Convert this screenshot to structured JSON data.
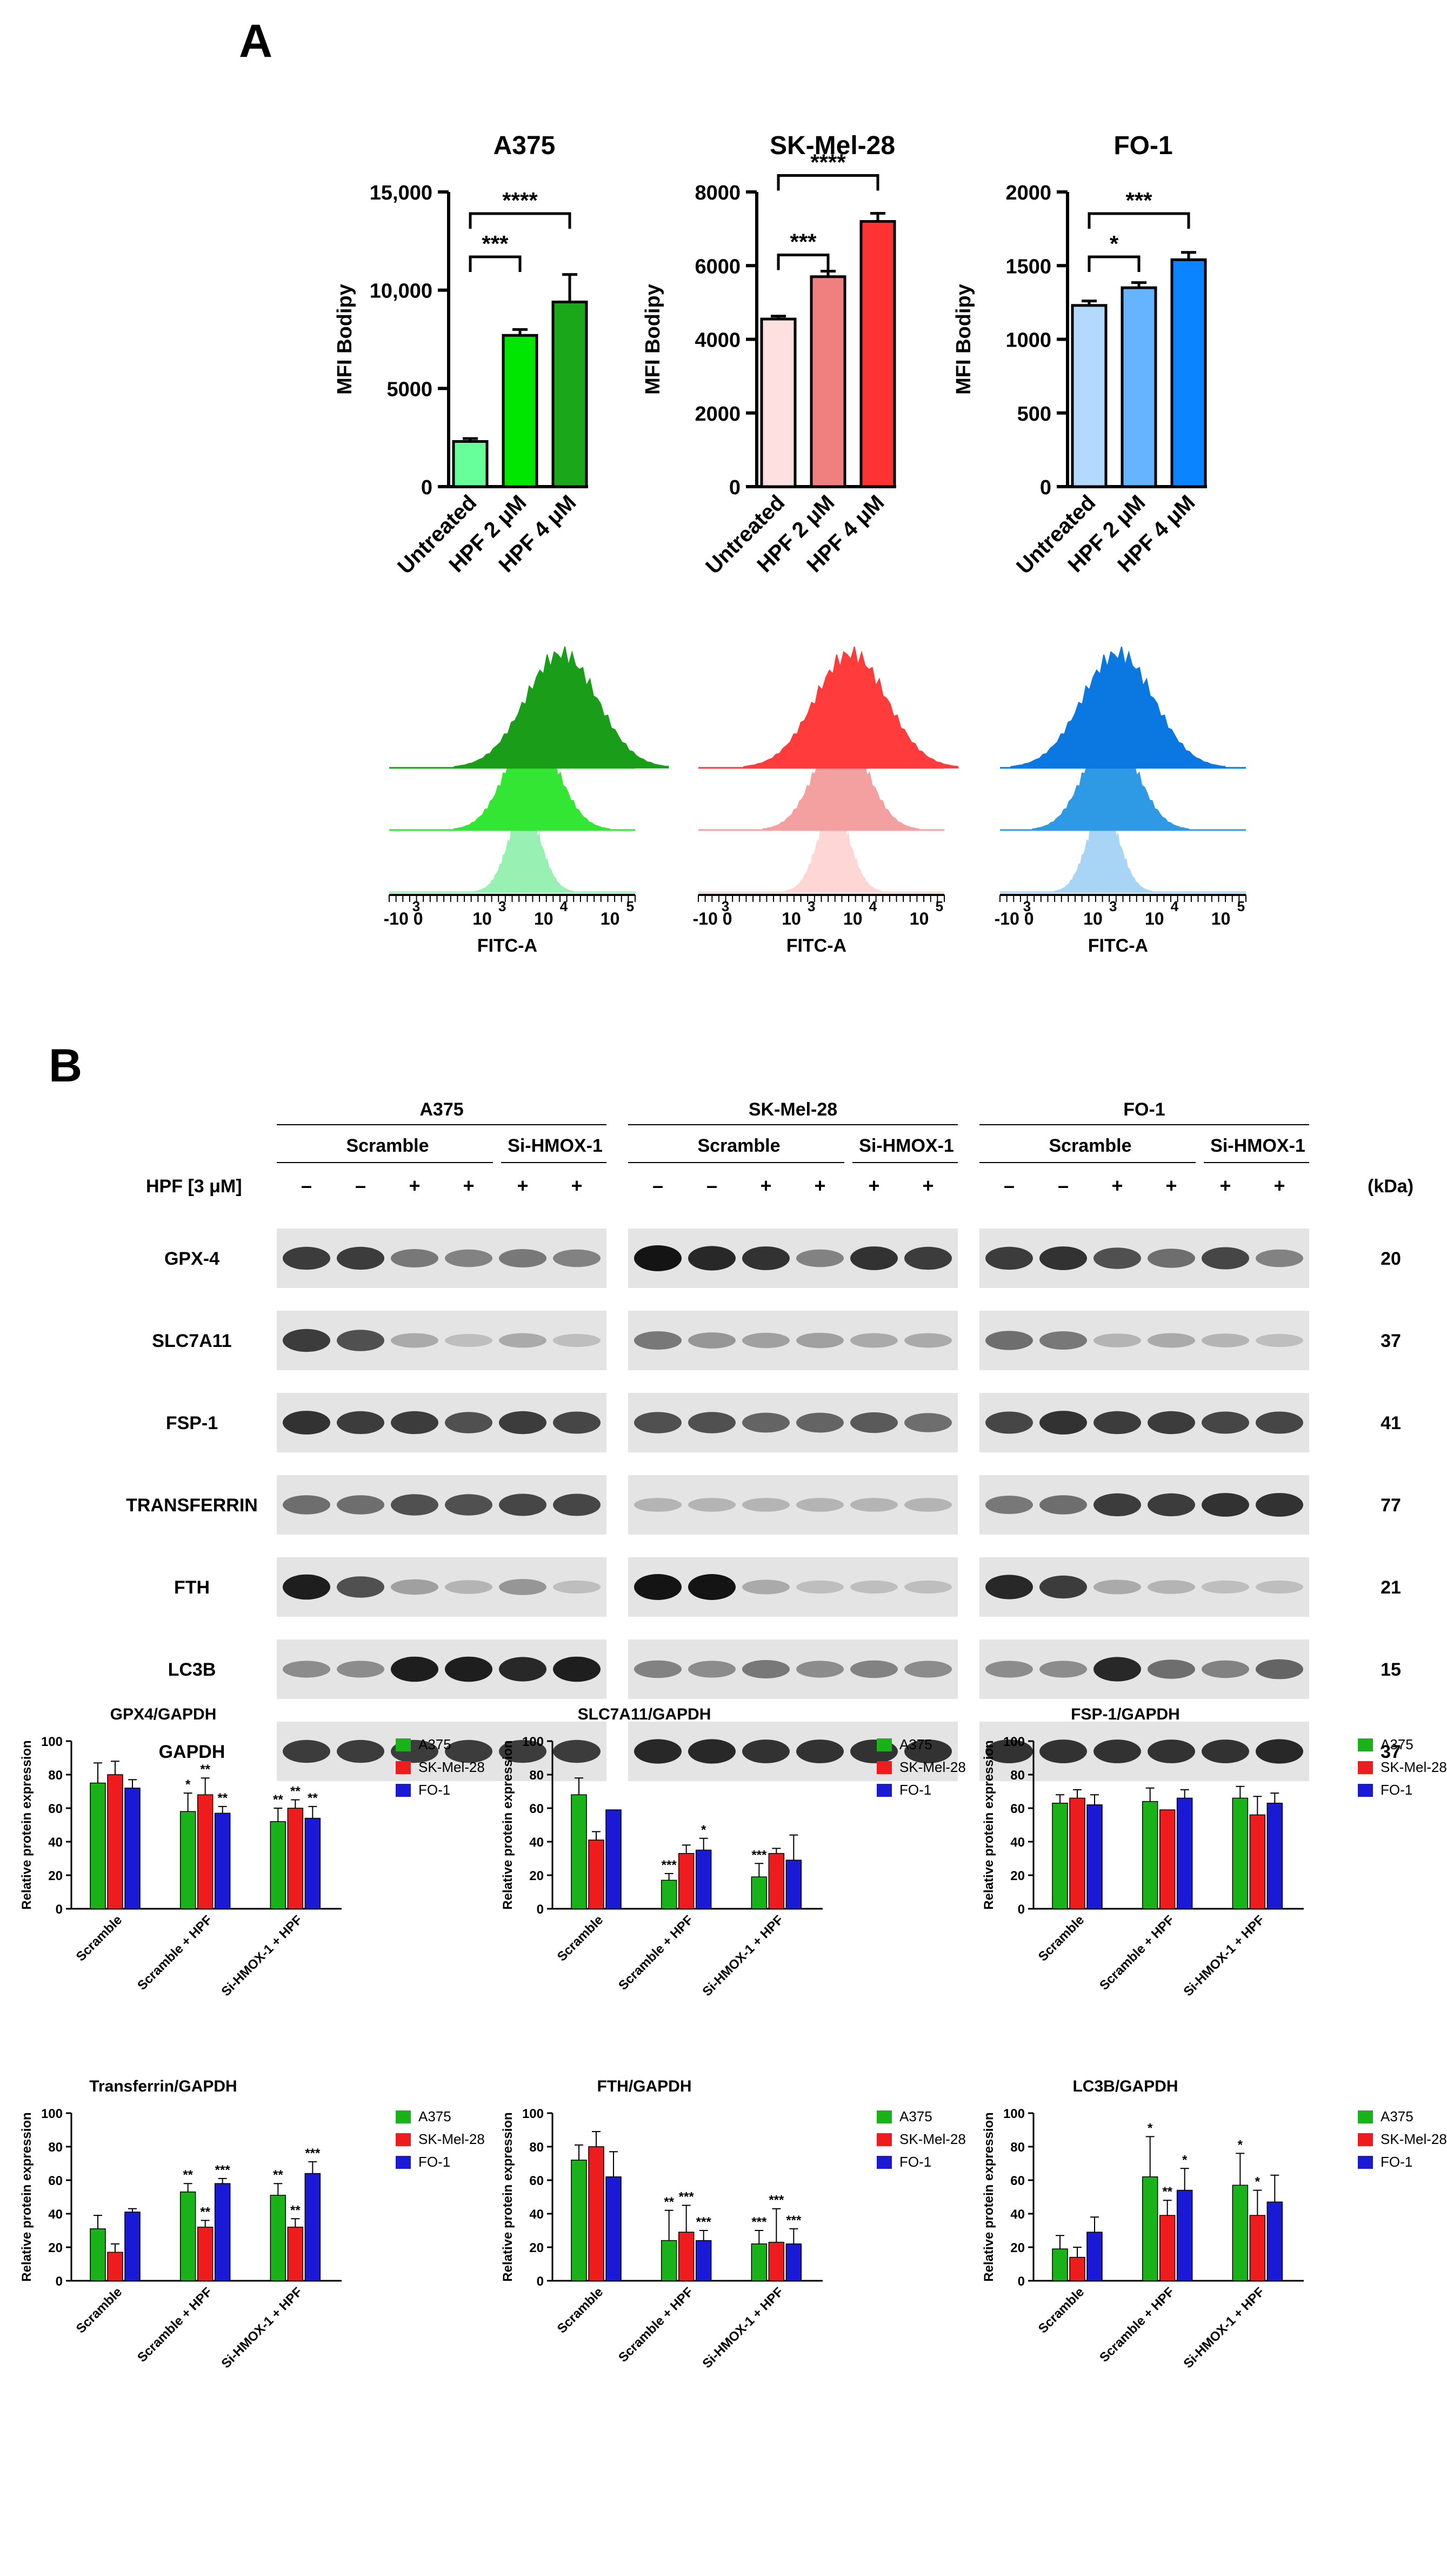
{
  "panel_a": {
    "label": "A",
    "bar_charts": [
      {
        "title": "A375",
        "ylabel": "MFI Bodipy",
        "yticks": [
          "0",
          "5000",
          "10,000",
          "15,000"
        ],
        "ymax": 15000,
        "categories": [
          "Untreated",
          "HPF 2 μM",
          "HPF 4 μM"
        ],
        "values": [
          2300,
          7700,
          9400
        ],
        "errors": [
          150,
          300,
          1400
        ],
        "colors": [
          "#66ff99",
          "#00e600",
          "#1aa81a"
        ],
        "brackets": [
          {
            "from": 0,
            "to": 1,
            "label": "***"
          },
          {
            "from": 0,
            "to": 2,
            "label": "****"
          }
        ]
      },
      {
        "title": "SK-Mel-28",
        "ylabel": "MFI Bodipy",
        "yticks": [
          "0",
          "2000",
          "4000",
          "6000",
          "8000"
        ],
        "ymax": 8000,
        "categories": [
          "Untreated",
          "HPF 2 μM",
          "HPF 4 μM"
        ],
        "values": [
          4550,
          5700,
          7200
        ],
        "errors": [
          80,
          150,
          220
        ],
        "colors": [
          "#ffe0e0",
          "#f08080",
          "#ff3333"
        ],
        "brackets": [
          {
            "from": 0,
            "to": 1,
            "label": "***"
          },
          {
            "from": 0,
            "to": 2,
            "label": "****"
          }
        ]
      },
      {
        "title": "FO-1",
        "ylabel": "MFI Bodipy",
        "yticks": [
          "0",
          "500",
          "1000",
          "1500",
          "2000"
        ],
        "ymax": 2000,
        "categories": [
          "Untreated",
          "HPF 2 μM",
          "HPF 4 μM"
        ],
        "values": [
          1230,
          1350,
          1540
        ],
        "errors": [
          30,
          35,
          50
        ],
        "colors": [
          "#b3d9ff",
          "#66b3ff",
          "#0a84ff"
        ],
        "brackets": [
          {
            "from": 0,
            "to": 1,
            "label": "*"
          },
          {
            "from": 0,
            "to": 2,
            "label": "***"
          }
        ]
      }
    ],
    "histograms": [
      {
        "xlabel": "FITC-A",
        "ticks": [
          "-10",
          "0",
          "10",
          "10",
          "10"
        ],
        "exps": [
          "3",
          "",
          "3",
          "4",
          "5"
        ],
        "colors": [
          "#99f0b3",
          "#33e633",
          "#1a9e1a"
        ],
        "peaks": [
          0.55,
          0.58,
          0.7
        ]
      },
      {
        "xlabel": "FITC-A",
        "ticks": [
          "-10",
          "0",
          "10",
          "10",
          "10"
        ],
        "exps": [
          "3",
          "",
          "3",
          "4",
          "5"
        ],
        "colors": [
          "#ffd6d6",
          "#f4a0a0",
          "#ff3b3b"
        ],
        "peaks": [
          0.55,
          0.58,
          0.62
        ]
      },
      {
        "xlabel": "FITC-A",
        "ticks": [
          "-10",
          "0",
          "10",
          "10",
          "10"
        ],
        "exps": [
          "3",
          "",
          "3",
          "4",
          "5"
        ],
        "colors": [
          "#a8d4f5",
          "#2e9ae6",
          "#0a78e0"
        ],
        "peaks": [
          0.42,
          0.45,
          0.48
        ]
      }
    ]
  },
  "panel_b": {
    "label": "B",
    "cell_lines": [
      "A375",
      "SK-Mel-28",
      "FO-1"
    ],
    "groups": [
      "Scramble",
      "Si-HMOX-1"
    ],
    "hpf_label": "HPF [3 μM]",
    "hpf_signs": [
      "–",
      "–",
      "+",
      "+",
      "+",
      "+"
    ],
    "kda_label": "(kDa)",
    "proteins": [
      {
        "name": "GPX-4",
        "kda": "20"
      },
      {
        "name": "SLC7A11",
        "kda": "37"
      },
      {
        "name": "FSP-1",
        "kda": "41"
      },
      {
        "name": "TRANSFERRIN",
        "kda": "77"
      },
      {
        "name": "FTH",
        "kda": "21"
      },
      {
        "name": "LC3B",
        "kda": "15"
      },
      {
        "name": "GAPDH",
        "kda": "37"
      }
    ]
  },
  "chart_data": [
    {
      "type": "bar",
      "title": "GPX4/GAPDH",
      "ylabel": "Relative protein expression",
      "ylim": [
        0,
        100
      ],
      "yticks": [
        "0",
        "20",
        "40",
        "60",
        "80",
        "100"
      ],
      "categories": [
        "Scramble",
        "Scramble + HPF",
        "Si-HMOX-1 + HPF"
      ],
      "series": [
        {
          "name": "A375",
          "values": [
            75,
            58,
            52
          ],
          "errors": [
            12,
            11,
            8
          ],
          "sig": [
            "",
            "*",
            "**"
          ]
        },
        {
          "name": "SK-Mel-28",
          "values": [
            80,
            68,
            60
          ],
          "errors": [
            8,
            10,
            5
          ],
          "sig": [
            "",
            "**",
            "**"
          ]
        },
        {
          "name": "FO-1",
          "values": [
            72,
            57,
            54
          ],
          "errors": [
            5,
            4,
            7
          ],
          "sig": [
            "",
            "**",
            "**"
          ]
        }
      ]
    },
    {
      "type": "bar",
      "title": "SLC7A11/GAPDH",
      "ylabel": "Relative protein expression",
      "ylim": [
        0,
        100
      ],
      "yticks": [
        "0",
        "20",
        "40",
        "60",
        "80",
        "100"
      ],
      "categories": [
        "Scramble",
        "Scramble + HPF",
        "Si-HMOX-1 + HPF"
      ],
      "series": [
        {
          "name": "A375",
          "values": [
            68,
            17,
            19
          ],
          "errors": [
            10,
            4,
            8
          ],
          "sig": [
            "",
            "***",
            "***"
          ]
        },
        {
          "name": "SK-Mel-28",
          "values": [
            41,
            33,
            33
          ],
          "errors": [
            5,
            5,
            3
          ],
          "sig": [
            "",
            "",
            ""
          ]
        },
        {
          "name": "FO-1",
          "values": [
            59,
            35,
            29
          ],
          "errors": [
            0,
            7,
            15
          ],
          "sig": [
            "",
            "*",
            ""
          ]
        }
      ]
    },
    {
      "type": "bar",
      "title": "FSP-1/GAPDH",
      "ylabel": "Relative protein expression",
      "ylim": [
        0,
        100
      ],
      "yticks": [
        "0",
        "20",
        "40",
        "60",
        "80",
        "100"
      ],
      "categories": [
        "Scramble",
        "Scramble + HPF",
        "Si-HMOX-1 + HPF"
      ],
      "series": [
        {
          "name": "A375",
          "values": [
            63,
            64,
            66
          ],
          "errors": [
            5,
            8,
            7
          ],
          "sig": [
            "",
            "",
            ""
          ]
        },
        {
          "name": "SK-Mel-28",
          "values": [
            66,
            59,
            56
          ],
          "errors": [
            5,
            0,
            11
          ],
          "sig": [
            "",
            "",
            ""
          ]
        },
        {
          "name": "FO-1",
          "values": [
            62,
            66,
            63
          ],
          "errors": [
            6,
            5,
            6
          ],
          "sig": [
            "",
            "",
            ""
          ]
        }
      ]
    },
    {
      "type": "bar",
      "title": "Transferrin/GAPDH",
      "ylabel": "Relative protein expression",
      "ylim": [
        0,
        100
      ],
      "yticks": [
        "0",
        "20",
        "40",
        "60",
        "80",
        "100"
      ],
      "categories": [
        "Scramble",
        "Scramble + HPF",
        "Si-HMOX-1 + HPF"
      ],
      "series": [
        {
          "name": "A375",
          "values": [
            31,
            53,
            51
          ],
          "errors": [
            8,
            5,
            7
          ],
          "sig": [
            "",
            "**",
            "**"
          ]
        },
        {
          "name": "SK-Mel-28",
          "values": [
            17,
            32,
            32
          ],
          "errors": [
            5,
            4,
            5
          ],
          "sig": [
            "",
            "**",
            "**"
          ]
        },
        {
          "name": "FO-1",
          "values": [
            41,
            58,
            64
          ],
          "errors": [
            2,
            3,
            7
          ],
          "sig": [
            "",
            "***",
            "***"
          ]
        }
      ]
    },
    {
      "type": "bar",
      "title": "FTH/GAPDH",
      "ylabel": "Relative protein expression",
      "ylim": [
        0,
        100
      ],
      "yticks": [
        "0",
        "20",
        "40",
        "60",
        "80",
        "100"
      ],
      "categories": [
        "Scramble",
        "Scramble + HPF",
        "Si-HMOX-1 + HPF"
      ],
      "series": [
        {
          "name": "A375",
          "values": [
            72,
            24,
            22
          ],
          "errors": [
            9,
            18,
            8
          ],
          "sig": [
            "",
            "**",
            "***"
          ]
        },
        {
          "name": "SK-Mel-28",
          "values": [
            80,
            29,
            23
          ],
          "errors": [
            9,
            16,
            20
          ],
          "sig": [
            "",
            "***",
            "***"
          ]
        },
        {
          "name": "FO-1",
          "values": [
            62,
            24,
            22
          ],
          "errors": [
            15,
            6,
            9
          ],
          "sig": [
            "",
            "***",
            "***"
          ]
        }
      ]
    },
    {
      "type": "bar",
      "title": "LC3B/GAPDH",
      "ylabel": "Relative protein expression",
      "ylim": [
        0,
        100
      ],
      "yticks": [
        "0",
        "20",
        "40",
        "60",
        "80",
        "100"
      ],
      "categories": [
        "Scramble",
        "Scramble + HPF",
        "Si-HMOX-1 + HPF"
      ],
      "series": [
        {
          "name": "A375",
          "values": [
            19,
            62,
            57
          ],
          "errors": [
            8,
            24,
            19
          ],
          "sig": [
            "",
            "*",
            "*"
          ]
        },
        {
          "name": "SK-Mel-28",
          "values": [
            14,
            39,
            39
          ],
          "errors": [
            6,
            9,
            15
          ],
          "sig": [
            "",
            "**",
            "*"
          ]
        },
        {
          "name": "FO-1",
          "values": [
            29,
            54,
            47
          ],
          "errors": [
            9,
            13,
            16
          ],
          "sig": [
            "",
            "*",
            ""
          ]
        }
      ]
    }
  ],
  "legend_colors": {
    "A375": "#19b319",
    "SK-Mel-28": "#ee1c1c",
    "FO-1": "#1a1ad6"
  }
}
